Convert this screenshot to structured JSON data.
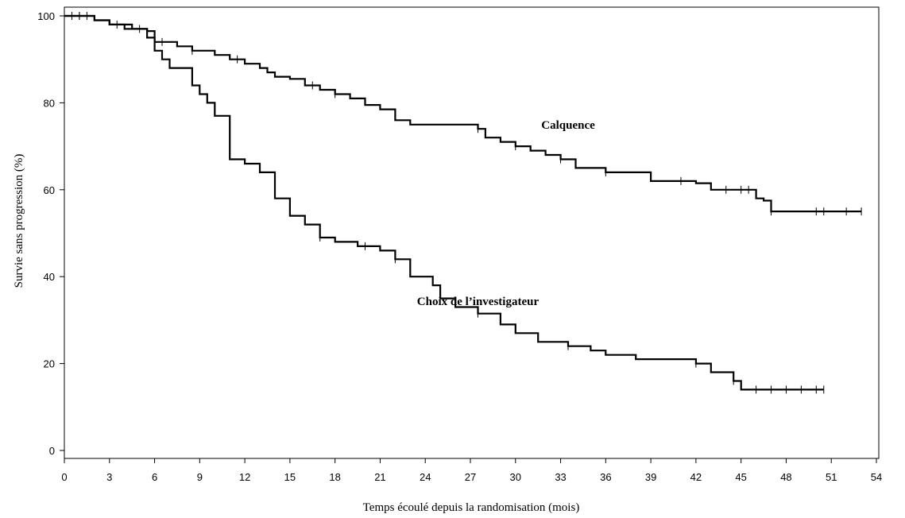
{
  "chart_data": {
    "type": "line",
    "step": true,
    "title": "",
    "xlabel": "Temps écoulé depuis la randomisation (mois)",
    "ylabel": "Survie sans progression (%)",
    "xlim": [
      0,
      54
    ],
    "ylim": [
      0,
      100
    ],
    "xticks": [
      0,
      3,
      6,
      9,
      12,
      15,
      18,
      21,
      24,
      27,
      30,
      33,
      36,
      39,
      42,
      45,
      48,
      51,
      54
    ],
    "yticks": [
      0,
      20,
      40,
      60,
      80,
      100
    ],
    "grid": false,
    "legend": "inline labels",
    "series": [
      {
        "name": "Calquence",
        "x": [
          0,
          2,
          3,
          4,
          5.5,
          6,
          7.5,
          8.5,
          10,
          11,
          12,
          13,
          13.5,
          14,
          15,
          16,
          17,
          18,
          19,
          20,
          21,
          22,
          23,
          27.5,
          28,
          29,
          30,
          31,
          32,
          33,
          34,
          36,
          39,
          42,
          43,
          46,
          46.5,
          47,
          53
        ],
        "y": [
          100,
          99,
          98,
          97,
          96.5,
          94,
          93,
          92,
          91,
          90,
          89,
          88,
          87,
          86,
          85.5,
          84,
          83,
          82,
          81,
          79.5,
          78.5,
          76,
          75,
          74,
          72,
          71,
          70,
          69,
          68,
          67,
          65,
          64,
          62,
          61.5,
          60,
          58,
          57.5,
          55,
          55
        ],
        "censored_x": [
          1,
          1.5,
          3.5,
          5,
          6.5,
          8.5,
          11.5,
          16.5,
          18,
          27.5,
          30,
          33,
          36,
          41,
          44,
          45,
          45.5,
          47,
          50,
          50.5,
          52,
          53
        ]
      },
      {
        "name": "Choix de l’investigateur",
        "x": [
          0,
          2,
          3,
          4.5,
          5.5,
          6,
          6.5,
          7,
          8.5,
          9,
          9.5,
          10,
          11,
          12,
          13,
          14,
          15,
          16,
          17,
          18,
          19.5,
          21,
          22,
          23,
          24.5,
          25,
          26,
          27.5,
          29,
          30,
          31.5,
          33.5,
          35,
          36,
          38,
          41,
          42,
          43,
          44.5,
          45,
          50.5
        ],
        "y": [
          100,
          99,
          98,
          97,
          95,
          92,
          90,
          88,
          84,
          82,
          80,
          77,
          67,
          66,
          64,
          58,
          54,
          52,
          49,
          48,
          47,
          46,
          44,
          40,
          38,
          35,
          33,
          31.5,
          29,
          27,
          25,
          24,
          23,
          22,
          21,
          21,
          20,
          18,
          16,
          14,
          14
        ],
        "censored_x": [
          0.5,
          1,
          17,
          20,
          22,
          27.5,
          33.5,
          42,
          44.5,
          46,
          47,
          48,
          49,
          50,
          50.5
        ]
      }
    ],
    "annotations": [
      {
        "text": "Calquence",
        "x": 33.5,
        "y": 74
      },
      {
        "text": "Choix de l’investigateur",
        "x": 27.5,
        "y": 33.5
      }
    ]
  }
}
